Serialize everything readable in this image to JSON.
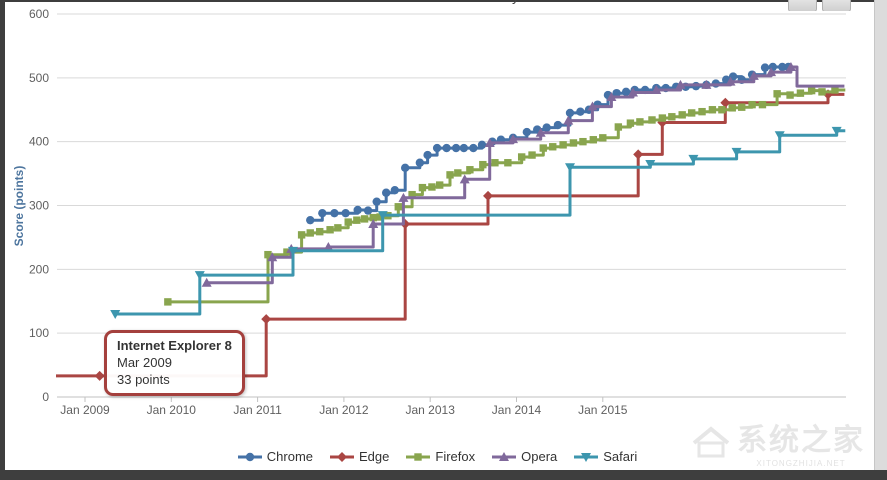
{
  "title_glimpse": "y",
  "watermark": {
    "cn": "系统之家",
    "en": "XITONGZHIJIA.NET"
  },
  "chart_data": {
    "type": "line",
    "step": true,
    "ylabel": "Score (points)",
    "xlabel": "",
    "ylim": [
      0,
      600
    ],
    "grid": "horizontal-only",
    "legend_position": "bottom-center",
    "colors": {
      "grid": "#d9d9d9",
      "axis_line": "#c2c2c2",
      "tick_label": "#606060",
      "y_title": "#4d759e",
      "legend_text": "#333333",
      "tooltip_border": "#a4403d"
    },
    "y_axis": {
      "ticks": [
        0,
        100,
        200,
        300,
        400,
        500,
        600
      ]
    },
    "x_axis": {
      "ticks": [
        {
          "label": "Jan 2009",
          "year": 2009
        },
        {
          "label": "Jan 2010",
          "year": 2010
        },
        {
          "label": "Jan 2011",
          "year": 2011
        },
        {
          "label": "Jan 2012",
          "year": 2012
        },
        {
          "label": "Jan 2013",
          "year": 2013
        },
        {
          "label": "Jan 2014",
          "year": 2014
        },
        {
          "label": "Jan 2015",
          "year": 2015
        }
      ]
    },
    "tooltip": {
      "title": "Internet Explorer 8",
      "date": "Mar 2009",
      "value": "33 points",
      "x": 2009.17,
      "y": 33
    },
    "series": [
      {
        "name": "Chrome",
        "color": "#4572a7",
        "marker": "circle",
        "points": [
          [
            2011.61,
            277
          ],
          [
            2011.75,
            288
          ],
          [
            2011.89,
            288
          ],
          [
            2012.02,
            288
          ],
          [
            2012.16,
            293
          ],
          [
            2012.28,
            292
          ],
          [
            2012.38,
            306
          ],
          [
            2012.49,
            320
          ],
          [
            2012.59,
            324
          ],
          [
            2012.71,
            359
          ],
          [
            2012.88,
            367
          ],
          [
            2012.97,
            379
          ],
          [
            2013.08,
            390
          ],
          [
            2013.19,
            390
          ],
          [
            2013.3,
            390
          ],
          [
            2013.39,
            390
          ],
          [
            2013.5,
            390
          ],
          [
            2013.6,
            395
          ],
          [
            2013.72,
            400
          ],
          [
            2013.82,
            403
          ],
          [
            2013.96,
            406
          ],
          [
            2014.12,
            415
          ],
          [
            2014.24,
            419
          ],
          [
            2014.35,
            422
          ],
          [
            2014.48,
            426
          ],
          [
            2014.62,
            445
          ],
          [
            2014.74,
            447
          ],
          [
            2014.84,
            450
          ],
          [
            2014.94,
            458
          ],
          [
            2015.06,
            473
          ],
          [
            2015.16,
            476
          ],
          [
            2015.27,
            478
          ],
          [
            2015.37,
            481
          ],
          [
            2015.49,
            481
          ],
          [
            2015.62,
            484
          ],
          [
            2015.73,
            484
          ],
          [
            2015.85,
            486
          ],
          [
            2015.96,
            486
          ],
          [
            2016.08,
            487
          ],
          [
            2016.2,
            489
          ],
          [
            2016.31,
            491
          ],
          [
            2016.43,
            497
          ],
          [
            2016.51,
            502
          ],
          [
            2016.61,
            497
          ],
          [
            2016.73,
            505
          ],
          [
            2016.88,
            516
          ],
          [
            2016.97,
            517
          ],
          [
            2017.08,
            517
          ],
          [
            2017.15,
            517
          ]
        ]
      },
      {
        "name": "Edge",
        "color": "#aa4643",
        "marker": "diamond",
        "points": [
          [
            2008.55,
            33,
            0
          ],
          [
            2009.17,
            33
          ],
          [
            2011.1,
            122
          ],
          [
            2012.71,
            271
          ],
          [
            2013.67,
            315
          ],
          [
            2015.41,
            380
          ],
          [
            2015.69,
            430
          ],
          [
            2016.42,
            461
          ],
          [
            2017.61,
            474
          ],
          [
            2017.8,
            474,
            0
          ]
        ]
      },
      {
        "name": "Firefox",
        "color": "#89a54e",
        "marker": "square",
        "points": [
          [
            2009.96,
            149
          ],
          [
            2011.12,
            223
          ],
          [
            2011.34,
            227
          ],
          [
            2011.51,
            254
          ],
          [
            2011.61,
            257
          ],
          [
            2011.72,
            259
          ],
          [
            2011.84,
            262
          ],
          [
            2011.93,
            265
          ],
          [
            2012.05,
            274
          ],
          [
            2012.15,
            277
          ],
          [
            2012.24,
            279
          ],
          [
            2012.34,
            281
          ],
          [
            2012.42,
            282
          ],
          [
            2012.51,
            284
          ],
          [
            2012.63,
            298
          ],
          [
            2012.79,
            317
          ],
          [
            2012.91,
            328
          ],
          [
            2013.02,
            329
          ],
          [
            2013.11,
            332
          ],
          [
            2013.23,
            348
          ],
          [
            2013.32,
            351
          ],
          [
            2013.46,
            356
          ],
          [
            2013.61,
            364
          ],
          [
            2013.75,
            367
          ],
          [
            2013.9,
            367
          ],
          [
            2014.06,
            376
          ],
          [
            2014.18,
            379
          ],
          [
            2014.31,
            390
          ],
          [
            2014.42,
            392
          ],
          [
            2014.54,
            395
          ],
          [
            2014.66,
            398
          ],
          [
            2014.77,
            400
          ],
          [
            2014.89,
            403
          ],
          [
            2015.0,
            406
          ],
          [
            2015.18,
            423
          ],
          [
            2015.32,
            429
          ],
          [
            2015.43,
            431
          ],
          [
            2015.57,
            434
          ],
          [
            2015.69,
            437
          ],
          [
            2015.8,
            439
          ],
          [
            2015.92,
            442
          ],
          [
            2016.03,
            445
          ],
          [
            2016.15,
            447
          ],
          [
            2016.27,
            450
          ],
          [
            2016.38,
            450
          ],
          [
            2016.5,
            453
          ],
          [
            2016.61,
            454
          ],
          [
            2016.73,
            458
          ],
          [
            2016.85,
            458
          ],
          [
            2017.02,
            475
          ],
          [
            2017.17,
            473
          ],
          [
            2017.29,
            476
          ],
          [
            2017.42,
            480
          ],
          [
            2017.54,
            478
          ],
          [
            2017.69,
            481
          ],
          [
            2017.81,
            481,
            0
          ]
        ]
      },
      {
        "name": "Opera",
        "color": "#80699b",
        "marker": "triangle-up",
        "points": [
          [
            2010.41,
            179
          ],
          [
            2011.17,
            219
          ],
          [
            2011.39,
            232
          ],
          [
            2011.82,
            235
          ],
          [
            2012.34,
            271
          ],
          [
            2012.69,
            312
          ],
          [
            2013.4,
            341
          ],
          [
            2013.69,
            398
          ],
          [
            2013.96,
            404
          ],
          [
            2014.28,
            414
          ],
          [
            2014.6,
            433
          ],
          [
            2014.88,
            455
          ],
          [
            2015.1,
            470
          ],
          [
            2015.35,
            477
          ],
          [
            2015.62,
            481
          ],
          [
            2015.9,
            489
          ],
          [
            2016.2,
            489
          ],
          [
            2016.48,
            494
          ],
          [
            2016.75,
            503
          ],
          [
            2016.95,
            509
          ],
          [
            2017.18,
            517
          ],
          [
            2017.25,
            487,
            0
          ],
          [
            2017.8,
            487,
            0
          ]
        ]
      },
      {
        "name": "Safari",
        "color": "#3d96ae",
        "marker": "triangle-down",
        "points": [
          [
            2009.35,
            130
          ],
          [
            2010.33,
            191
          ],
          [
            2011.41,
            229
          ],
          [
            2012.45,
            285
          ],
          [
            2014.62,
            360
          ],
          [
            2015.55,
            365
          ],
          [
            2016.05,
            373
          ],
          [
            2016.55,
            384
          ],
          [
            2017.05,
            410
          ],
          [
            2017.71,
            417
          ],
          [
            2017.81,
            417,
            0
          ]
        ]
      }
    ]
  }
}
